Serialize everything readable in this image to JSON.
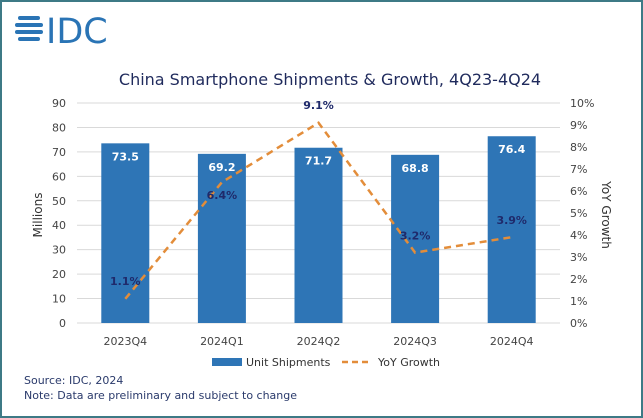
{
  "logo_text": "IDC",
  "chart_data": {
    "type": "bar+line",
    "title": "China Smartphone Shipments & Growth, 4Q23-4Q24",
    "categories": [
      "2023Q4",
      "2024Q1",
      "2024Q2",
      "2024Q3",
      "2024Q4"
    ],
    "series": [
      {
        "name": "Unit Shipments",
        "type": "bar",
        "axis": "left",
        "values": [
          73.5,
          69.2,
          71.7,
          68.8,
          76.4
        ],
        "labels": [
          "73.5",
          "69.2",
          "71.7",
          "68.8",
          "76.4"
        ],
        "color": "#2e75b6"
      },
      {
        "name": "YoY Growth",
        "type": "line",
        "axis": "right",
        "values": [
          1.1,
          6.4,
          9.1,
          3.2,
          3.9
        ],
        "labels": [
          "1.1%",
          "6.4%",
          "9.1%",
          "3.2%",
          "3.9%"
        ],
        "color": "#e38d3a",
        "dash": "dashed"
      }
    ],
    "ylabel": "Millions",
    "ylim": [
      0,
      90
    ],
    "yticks": [
      "0",
      "10",
      "20",
      "30",
      "40",
      "50",
      "60",
      "70",
      "80",
      "90"
    ],
    "y2label": "YoY Growth",
    "y2lim": [
      0,
      10
    ],
    "y2ticks": [
      "0%",
      "1%",
      "2%",
      "3%",
      "4%",
      "5%",
      "6%",
      "7%",
      "8%",
      "9%",
      "10%"
    ],
    "grid": true,
    "legend": "bottom"
  },
  "footer": {
    "source": "Source: IDC, 2024",
    "note": "Note: Data are preliminary and subject to change"
  }
}
